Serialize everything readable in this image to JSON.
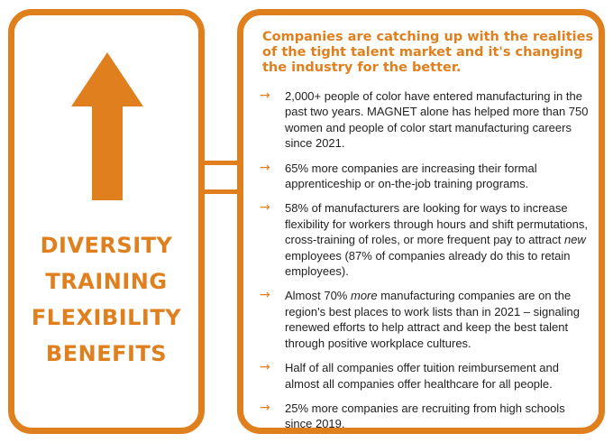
{
  "theme": {
    "accent": "#e07f1e",
    "text": "#222222",
    "background": "#ffffff"
  },
  "left_panel": {
    "icon": "up-arrow-icon",
    "keywords": [
      "DIVERSITY",
      "TRAINING",
      "FLEXIBILITY",
      "BENEFITS"
    ]
  },
  "right_panel": {
    "headline": "Companies are catching up with the realities of the tight talent market and it's changing the industry for the better.",
    "bullet_icon": "right-arrow-icon",
    "bullets": [
      {
        "text": "2,000+ people of color have entered manufacturing in the past two years. MAGNET alone has helped more than 750 women and people of color start manufacturing careers since 2021."
      },
      {
        "text": "65% more companies are increasing their formal apprenticeship or on-the-job training programs."
      },
      {
        "pre": "58% of manufacturers are looking for ways to increase flexibility for workers through hours and shift permutations, cross-training of roles, or more frequent pay to attract ",
        "em": "new",
        "post": " employees (87% of companies already do this to retain employees)."
      },
      {
        "pre": "Almost 70% ",
        "em": "more",
        "post": " manufacturing companies are on the region's best places to work lists than in 2021 – signaling renewed efforts to help attract and keep the best talent through positive workplace cultures."
      },
      {
        "text": "Half of all companies offer tuition reimbursement and almost all companies offer healthcare for all people."
      },
      {
        "text": "25% more companies are recruiting from high schools since 2019."
      }
    ]
  }
}
